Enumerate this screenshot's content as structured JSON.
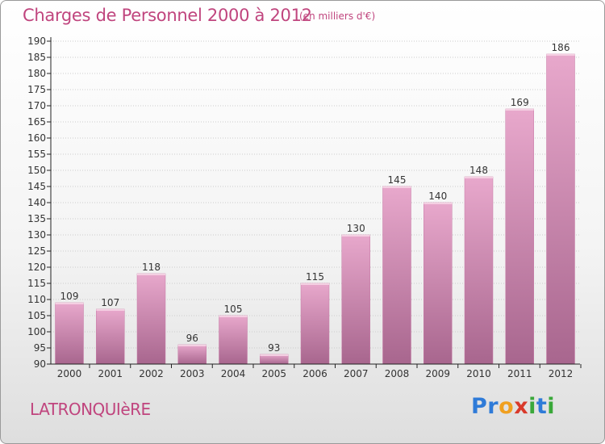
{
  "header": {
    "title": "Charges de Personnel 2000 à 2012",
    "subtitle": "(en milliers d'€)"
  },
  "footer": {
    "commune": "LATRONQUIèRE",
    "brand_letters": [
      {
        "ch": "P",
        "color": "#2f7bd8"
      },
      {
        "ch": "r",
        "color": "#2f7bd8"
      },
      {
        "ch": "o",
        "color": "#f0a020"
      },
      {
        "ch": "x",
        "color": "#d93a2b"
      },
      {
        "ch": "i",
        "color": "#3aa83a"
      },
      {
        "ch": "t",
        "color": "#2f7bd8"
      },
      {
        "ch": "i",
        "color": "#3aa83a"
      }
    ]
  },
  "colors": {
    "title": "#c0457e",
    "bar_light": "#e8a8cc",
    "bar_dark": "#a8668e",
    "axis": "#222222",
    "grid": "#cccccc"
  },
  "chart_data": {
    "type": "bar",
    "categories": [
      "2000",
      "2001",
      "2002",
      "2003",
      "2004",
      "2005",
      "2006",
      "2007",
      "2008",
      "2009",
      "2010",
      "2011",
      "2012"
    ],
    "values": [
      109,
      107,
      118,
      96,
      105,
      93,
      115,
      130,
      145,
      140,
      148,
      169,
      186
    ],
    "title": "Charges de Personnel 2000 à 2012",
    "subtitle": "(en milliers d'€)",
    "ylim": [
      90,
      190
    ],
    "yticks": [
      90,
      95,
      100,
      105,
      110,
      115,
      120,
      125,
      130,
      135,
      140,
      145,
      150,
      155,
      160,
      165,
      170,
      175,
      180,
      185,
      190
    ],
    "grid": true,
    "data_labels": true
  }
}
